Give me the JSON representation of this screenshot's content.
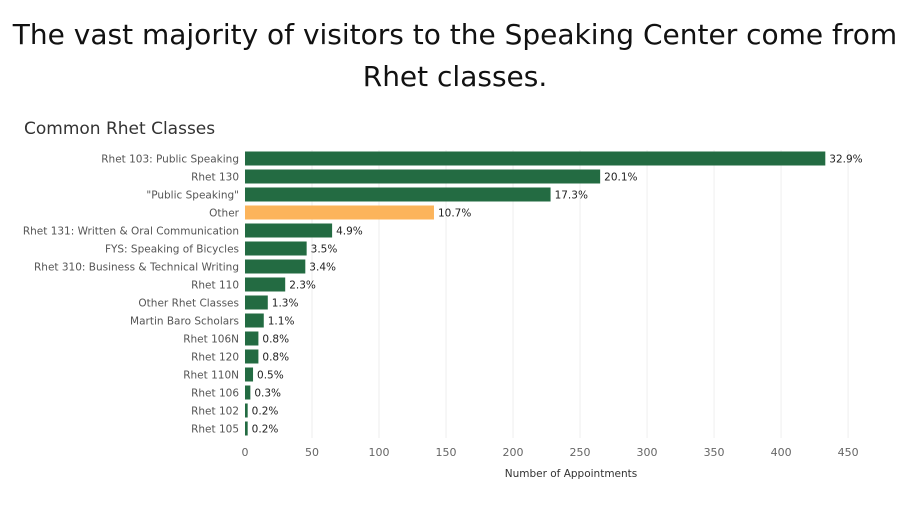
{
  "chart_data": {
    "type": "bar",
    "orientation": "horizontal",
    "title": "The vast majority of visitors to the Speaking Center come from Rhet classes.",
    "subtitle": "Common Rhet Classes",
    "xlabel": "Number of Appointments",
    "ylabel": "",
    "xlim": [
      0,
      475
    ],
    "xticks": [
      0,
      50,
      100,
      150,
      200,
      250,
      300,
      350,
      400,
      450
    ],
    "grid": true,
    "categories": [
      "Rhet 103: Public Speaking",
      "Rhet 130",
      "\"Public Speaking\"",
      "Other",
      "Rhet 131: Written & Oral Communication",
      "FYS: Speaking of Bicycles",
      "Rhet 310: Business & Technical Writing",
      "Rhet 110",
      "Other Rhet Classes",
      "Martin Baro Scholars",
      "Rhet 106N",
      "Rhet 120",
      "Rhet 110N",
      "Rhet 106",
      "Rhet 102",
      "Rhet 105"
    ],
    "values": [
      433,
      265,
      228,
      141,
      65,
      46,
      45,
      30,
      17,
      14,
      10,
      10,
      6,
      4,
      2,
      2
    ],
    "labels": [
      "32.9%",
      "20.1%",
      "17.3%",
      "10.7%",
      "4.9%",
      "3.5%",
      "3.4%",
      "2.3%",
      "1.3%",
      "1.1%",
      "0.8%",
      "0.8%",
      "0.5%",
      "0.3%",
      "0.2%",
      "0.2%"
    ],
    "highlight_category": "Other",
    "colors": {
      "bar": "#236b42",
      "highlight": "#fcb45b",
      "grid": "#eeeeee"
    }
  }
}
